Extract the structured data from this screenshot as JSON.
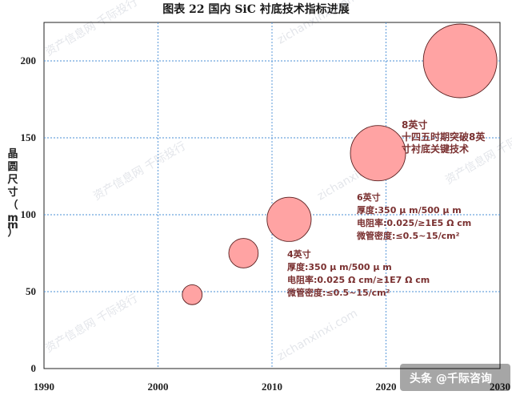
{
  "header": {
    "title": "图表 22    国内 SiC 衬底技术指标进展"
  },
  "chart_data": {
    "type": "scatter",
    "title": "图表 22    国内 SiC 衬底技术指标进展",
    "ylabel": "晶圆尺寸（mm）",
    "xlabel": "",
    "xlim": [
      1990,
      2030
    ],
    "ylim": [
      0,
      225
    ],
    "x_ticks": [
      "1990",
      "2000",
      "2010",
      "2020",
      "2030"
    ],
    "y_ticks": [
      "0",
      "50",
      "100",
      "150",
      "200"
    ],
    "grid": true,
    "bubble_color": "#ffa3a3",
    "bubble_edge": "#5a2020",
    "points": [
      {
        "x": 2003,
        "y": 48,
        "size": 0.27
      },
      {
        "x": 2007.5,
        "y": 75,
        "size": 0.4
      },
      {
        "x": 2011.5,
        "y": 97,
        "size": 0.6
      },
      {
        "x": 2019.3,
        "y": 140,
        "size": 0.75
      },
      {
        "x": 2026.5,
        "y": 200,
        "size": 1.0
      }
    ],
    "annotations": [
      {
        "lines": [
          "8英寸",
          "十四五时期突破8英",
          "寸衬底关键技术"
        ]
      },
      {
        "lines": [
          "6英寸",
          "厚度:350 μ m/500 μ m",
          "电阻率:0.025/≥1E5 Ω cm",
          "微管密度:≤0.5~15/cm²"
        ]
      },
      {
        "lines": [
          "4英寸",
          "厚度:350 μ m/500 μ m",
          "电阻率:0.025 Ω cm/≥1E7 Ω cm",
          "微管密度:≤0.5~15/cm²"
        ]
      }
    ]
  },
  "watermarks": [
    "资产信息网 千际投行",
    "zichanxinxi.com"
  ],
  "credit": "头条 @千际咨询"
}
